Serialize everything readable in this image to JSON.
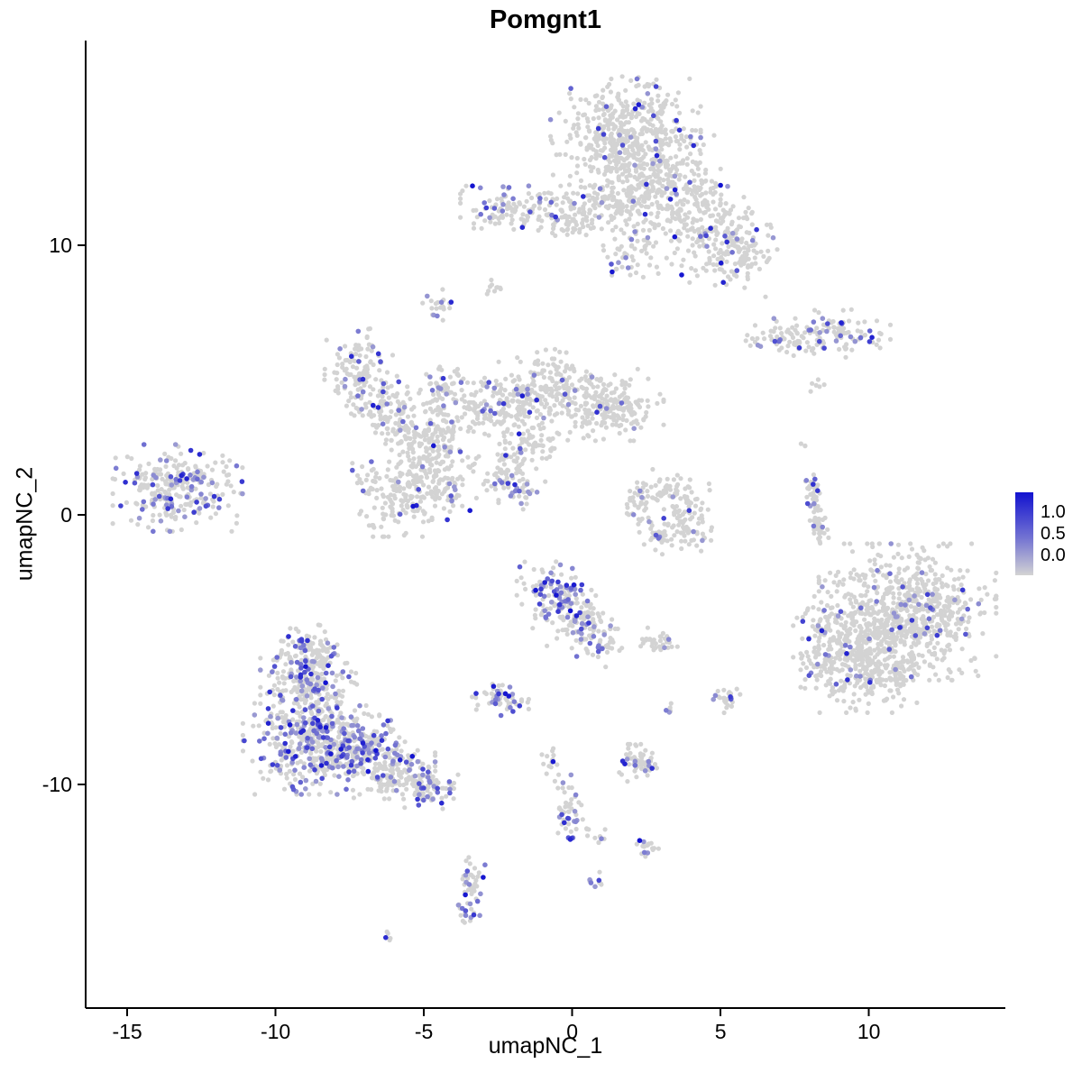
{
  "title": "Pomgnt1",
  "axes": {
    "x_label": "umapNC_1",
    "y_label": "umapNC_2",
    "x_ticks": [
      "-15",
      "-10",
      "-5",
      "0",
      "5",
      "10"
    ],
    "y_ticks": [
      "10",
      "0",
      "-10"
    ]
  },
  "legend": {
    "ticks": [
      "1.0",
      "0.5",
      "0.0"
    ],
    "low_color": "#d3d3d3",
    "high_color": "#1212d0"
  },
  "chart_data": {
    "type": "scatter",
    "title": "Pomgnt1",
    "xlabel": "umapNC_1",
    "ylabel": "umapNC_2",
    "xlim": [
      -16.4,
      14.6
    ],
    "ylim": [
      -18.3,
      17.6
    ],
    "x_ticks": [
      -15,
      -10,
      -5,
      0,
      5,
      10
    ],
    "y_ticks": [
      10,
      0,
      -10
    ],
    "grid": false,
    "legend_position": "right",
    "color_scale": {
      "low": "#d3d3d3",
      "high": "#1212d0",
      "limits": [
        0.0,
        1.0
      ],
      "legend_ticks": [
        1.0,
        0.5,
        0.0
      ]
    },
    "point_radius": 2.6,
    "seed": 42,
    "clusters": [
      {
        "cx": 1.8,
        "cy": 14.2,
        "sx": 1.1,
        "sy": 0.9,
        "n": 430,
        "frac": 0.05
      },
      {
        "cx": 2.7,
        "cy": 12.4,
        "sx": 1.0,
        "sy": 0.8,
        "n": 240,
        "frac": 0.06
      },
      {
        "cx": 4.3,
        "cy": 11.0,
        "sx": 0.9,
        "sy": 0.8,
        "n": 190,
        "frac": 0.08
      },
      {
        "cx": 5.3,
        "cy": 9.7,
        "sx": 0.7,
        "sy": 0.7,
        "n": 140,
        "frac": 0.09
      },
      {
        "cx": 1.2,
        "cy": 11.6,
        "sx": 0.8,
        "sy": 0.5,
        "n": 110,
        "frac": 0.05
      },
      {
        "cx": -1.7,
        "cy": 11.4,
        "sx": 0.9,
        "sy": 0.35,
        "n": 130,
        "frac": 0.15
      },
      {
        "cx": -0.1,
        "cy": 11.0,
        "sx": 0.5,
        "sy": 0.4,
        "n": 60,
        "frac": 0.05
      },
      {
        "cx": 2.0,
        "cy": 9.7,
        "sx": 0.45,
        "sy": 0.5,
        "n": 50,
        "frac": 0.1
      },
      {
        "cx": 7.2,
        "cy": 6.6,
        "sx": 0.6,
        "sy": 0.3,
        "n": 70,
        "frac": 0.15
      },
      {
        "cx": 9.0,
        "cy": 6.7,
        "sx": 0.75,
        "sy": 0.4,
        "n": 90,
        "frac": 0.12
      },
      {
        "cx": 8.2,
        "cy": 4.7,
        "sx": 0.15,
        "sy": 0.15,
        "n": 6,
        "frac": 0
      },
      {
        "cx": -7.2,
        "cy": 5.3,
        "sx": 0.5,
        "sy": 0.7,
        "n": 120,
        "frac": 0.15
      },
      {
        "cx": -6.3,
        "cy": 4.0,
        "sx": 0.5,
        "sy": 0.5,
        "n": 80,
        "frac": 0.08
      },
      {
        "cx": -5.5,
        "cy": 2.8,
        "sx": 0.5,
        "sy": 0.6,
        "n": 90,
        "frac": 0.05
      },
      {
        "cx": -5.8,
        "cy": 0.8,
        "sx": 0.7,
        "sy": 0.7,
        "n": 160,
        "frac": 0.08
      },
      {
        "cx": -4.3,
        "cy": 1.2,
        "sx": 0.5,
        "sy": 0.6,
        "n": 110,
        "frac": 0.08
      },
      {
        "cx": -4.6,
        "cy": 2.9,
        "sx": 0.4,
        "sy": 0.4,
        "n": 60,
        "frac": 0.05
      },
      {
        "cx": -4.4,
        "cy": 4.6,
        "sx": 0.35,
        "sy": 0.5,
        "n": 70,
        "frac": 0.1
      },
      {
        "cx": -4.5,
        "cy": 7.7,
        "sx": 0.25,
        "sy": 0.3,
        "n": 22,
        "frac": 0.3
      },
      {
        "cx": -2.7,
        "cy": 8.4,
        "sx": 0.2,
        "sy": 0.15,
        "n": 10,
        "frac": 0
      },
      {
        "cx": -3.2,
        "cy": 3.9,
        "sx": 0.5,
        "sy": 0.5,
        "n": 80,
        "frac": 0.05
      },
      {
        "cx": -1.9,
        "cy": 4.3,
        "sx": 0.6,
        "sy": 0.6,
        "n": 110,
        "frac": 0.07
      },
      {
        "cx": -0.7,
        "cy": 4.9,
        "sx": 0.5,
        "sy": 0.6,
        "n": 100,
        "frac": 0.08
      },
      {
        "cx": 0.6,
        "cy": 4.3,
        "sx": 0.7,
        "sy": 0.6,
        "n": 130,
        "frac": 0.06
      },
      {
        "cx": 1.7,
        "cy": 3.9,
        "sx": 0.6,
        "sy": 0.5,
        "n": 110,
        "frac": 0.06
      },
      {
        "cx": -1.3,
        "cy": 2.7,
        "sx": 0.5,
        "sy": 0.5,
        "n": 70,
        "frac": 0.04
      },
      {
        "cx": -2.3,
        "cy": 1.6,
        "sx": 0.45,
        "sy": 0.5,
        "n": 60,
        "frac": 0.1
      },
      {
        "cx": -1.6,
        "cy": 0.9,
        "sx": 0.3,
        "sy": 0.3,
        "n": 30,
        "frac": 0.3
      },
      {
        "cx": -13.3,
        "cy": 1.0,
        "sx": 0.95,
        "sy": 0.7,
        "n": 280,
        "frac": 0.22
      },
      {
        "cx": 3.1,
        "cy": 1.0,
        "sx": 0.5,
        "sy": 0.3,
        "n": 50,
        "frac": 0.04
      },
      {
        "cx": 3.9,
        "cy": 0.2,
        "sx": 0.35,
        "sy": 0.5,
        "n": 60,
        "frac": 0.04
      },
      {
        "cx": 3.3,
        "cy": -0.8,
        "sx": 0.6,
        "sy": 0.3,
        "n": 60,
        "frac": 0.06
      },
      {
        "cx": 2.3,
        "cy": 0.3,
        "sx": 0.25,
        "sy": 0.4,
        "n": 30,
        "frac": 0.1
      },
      {
        "cx": 8.1,
        "cy": 0.9,
        "sx": 0.12,
        "sy": 0.35,
        "n": 30,
        "frac": 0.2
      },
      {
        "cx": 8.3,
        "cy": -0.3,
        "sx": 0.15,
        "sy": 0.45,
        "n": 40,
        "frac": 0.05
      },
      {
        "cx": 11.3,
        "cy": -3.6,
        "sx": 1.3,
        "sy": 1.1,
        "n": 680,
        "frac": 0.05
      },
      {
        "cx": 10.0,
        "cy": -5.5,
        "sx": 1.0,
        "sy": 0.8,
        "n": 340,
        "frac": 0.05
      },
      {
        "cx": 8.6,
        "cy": -4.5,
        "sx": 0.5,
        "sy": 0.9,
        "n": 120,
        "frac": 0.1
      },
      {
        "cx": -0.6,
        "cy": -3.0,
        "sx": 0.55,
        "sy": 0.55,
        "n": 140,
        "frac": 0.3
      },
      {
        "cx": 0.3,
        "cy": -4.1,
        "sx": 0.5,
        "sy": 0.5,
        "n": 80,
        "frac": 0.15
      },
      {
        "cx": 1.1,
        "cy": -4.8,
        "sx": 0.25,
        "sy": 0.4,
        "n": 35,
        "frac": 0.15
      },
      {
        "cx": 2.6,
        "cy": -4.7,
        "sx": 0.2,
        "sy": 0.25,
        "n": 20,
        "frac": 0.1
      },
      {
        "cx": 3.2,
        "cy": -4.8,
        "sx": 0.15,
        "sy": 0.2,
        "n": 12,
        "frac": 0.2
      },
      {
        "cx": -2.5,
        "cy": -6.8,
        "sx": 0.45,
        "sy": 0.28,
        "n": 60,
        "frac": 0.3
      },
      {
        "cx": -8.8,
        "cy": -8.3,
        "sx": 1.0,
        "sy": 0.9,
        "n": 430,
        "frac": 0.3
      },
      {
        "cx": -8.9,
        "cy": -6.3,
        "sx": 0.7,
        "sy": 0.7,
        "n": 210,
        "frac": 0.2
      },
      {
        "cx": -8.8,
        "cy": -5.0,
        "sx": 0.5,
        "sy": 0.4,
        "n": 90,
        "frac": 0.15
      },
      {
        "cx": -7.2,
        "cy": -8.8,
        "sx": 0.7,
        "sy": 0.6,
        "n": 190,
        "frac": 0.25
      },
      {
        "cx": -6.0,
        "cy": -9.5,
        "sx": 0.6,
        "sy": 0.45,
        "n": 130,
        "frac": 0.2
      },
      {
        "cx": -4.9,
        "cy": -10.1,
        "sx": 0.5,
        "sy": 0.35,
        "n": 90,
        "frac": 0.2
      },
      {
        "cx": 5.2,
        "cy": -6.9,
        "sx": 0.2,
        "sy": 0.25,
        "n": 25,
        "frac": 0.25
      },
      {
        "cx": 3.35,
        "cy": -7.2,
        "sx": 0.1,
        "sy": 0.12,
        "n": 6,
        "frac": 0.3
      },
      {
        "cx": 2.3,
        "cy": -9.2,
        "sx": 0.35,
        "sy": 0.3,
        "n": 60,
        "frac": 0.2
      },
      {
        "cx": -0.8,
        "cy": -9.3,
        "sx": 0.15,
        "sy": 0.3,
        "n": 15,
        "frac": 0.1
      },
      {
        "cx": -0.2,
        "cy": -10.4,
        "sx": 0.2,
        "sy": 0.4,
        "n": 20,
        "frac": 0.15
      },
      {
        "cx": -0.1,
        "cy": -11.4,
        "sx": 0.2,
        "sy": 0.3,
        "n": 30,
        "frac": 0.4
      },
      {
        "cx": 0.7,
        "cy": -11.9,
        "sx": 0.2,
        "sy": 0.2,
        "n": 12,
        "frac": 0.1
      },
      {
        "cx": 2.5,
        "cy": -12.3,
        "sx": 0.18,
        "sy": 0.2,
        "n": 18,
        "frac": 0.35
      },
      {
        "cx": -3.4,
        "cy": -13.4,
        "sx": 0.2,
        "sy": 0.3,
        "n": 20,
        "frac": 0.3
      },
      {
        "cx": -3.5,
        "cy": -14.3,
        "sx": 0.2,
        "sy": 0.4,
        "n": 35,
        "frac": 0.4
      },
      {
        "cx": 0.8,
        "cy": -13.6,
        "sx": 0.15,
        "sy": 0.15,
        "n": 10,
        "frac": 0.3
      },
      {
        "cx": -6.2,
        "cy": -15.7,
        "sx": 0.1,
        "sy": 0.1,
        "n": 5,
        "frac": 0.2
      },
      {
        "cx": 7.9,
        "cy": 2.5,
        "sx": 0.12,
        "sy": 0.12,
        "n": 3,
        "frac": 0
      }
    ]
  }
}
